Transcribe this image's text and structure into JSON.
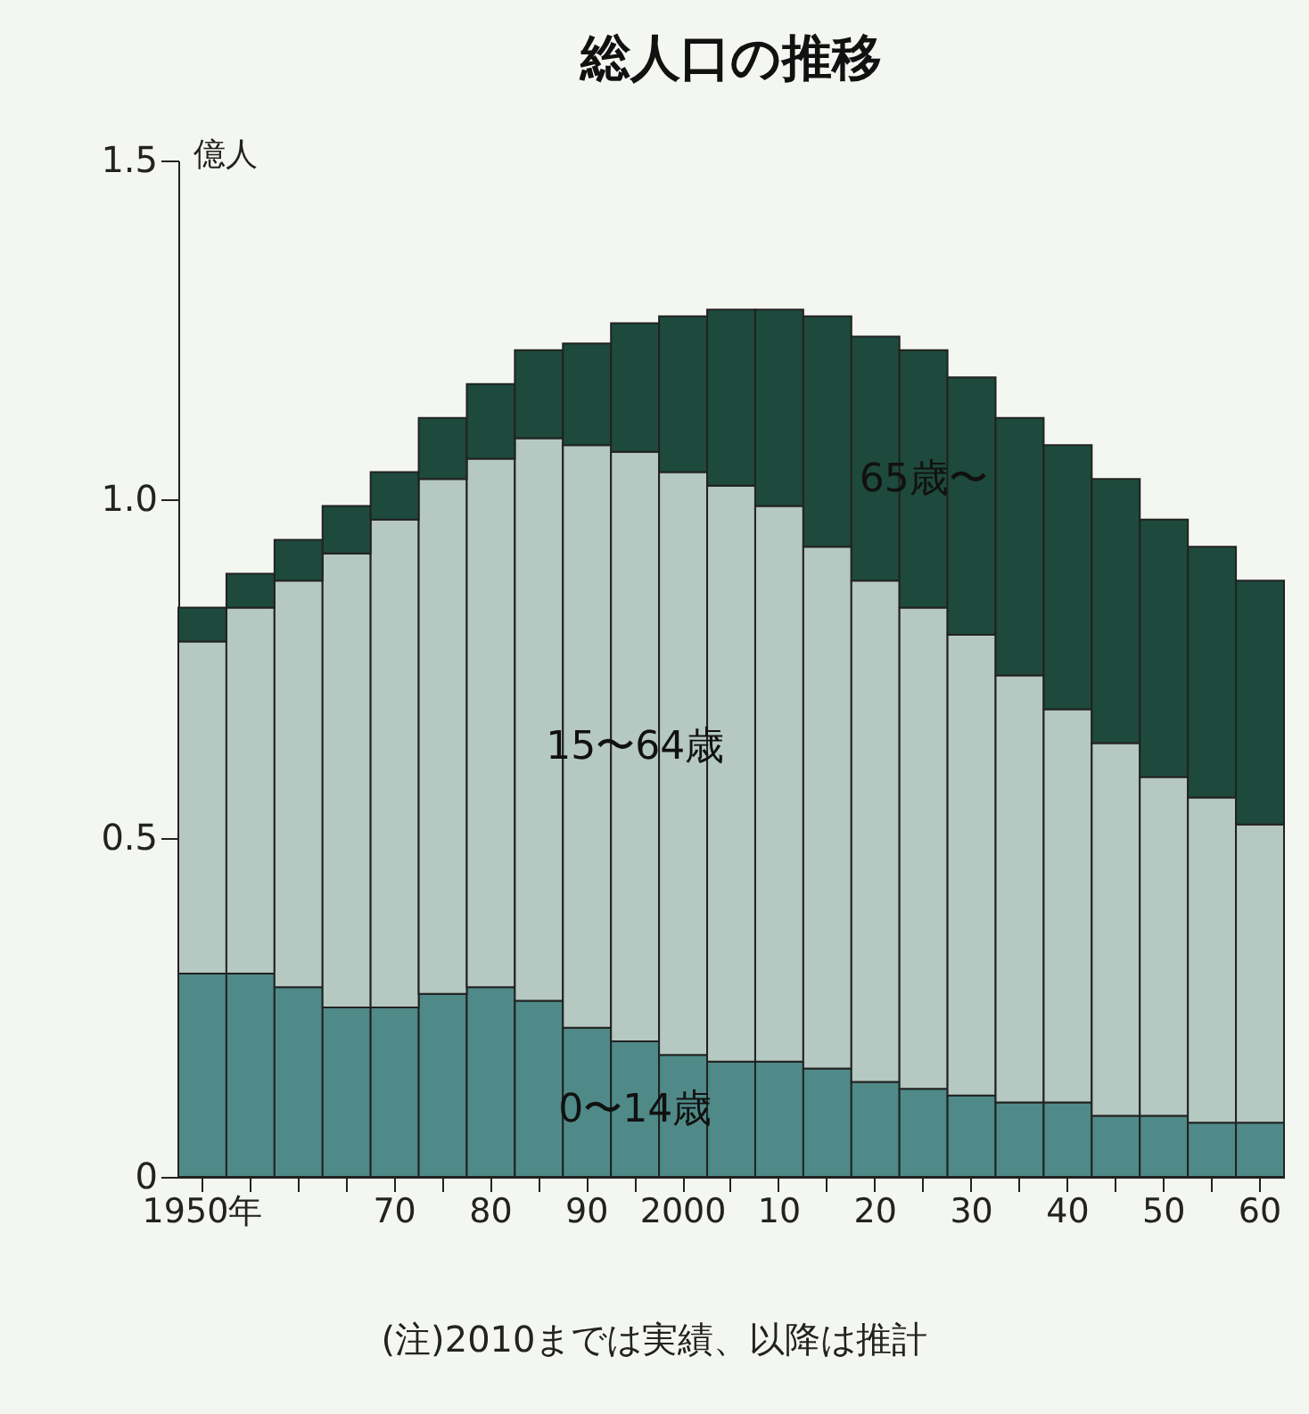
{
  "chart_data": {
    "type": "bar",
    "stacked": true,
    "title": "総人口の推移",
    "ylabel": "億人",
    "xlabel": null,
    "categories": [
      "1950年",
      null,
      null,
      null,
      "70",
      null,
      "80",
      null,
      "90",
      null,
      "2000",
      null,
      "10",
      null,
      "20",
      null,
      "30",
      null,
      "40",
      null,
      "50",
      null,
      "60"
    ],
    "series": [
      {
        "name": "0〜14歳",
        "color": "#4f8a88",
        "values": [
          0.3,
          0.3,
          0.28,
          0.25,
          0.25,
          0.27,
          0.28,
          0.26,
          0.22,
          0.2,
          0.18,
          0.17,
          0.17,
          0.16,
          0.14,
          0.13,
          0.12,
          0.11,
          0.11,
          0.09,
          0.09,
          0.08,
          0.08
        ]
      },
      {
        "name": "15〜64歳",
        "color": "#b5c8c1",
        "values": [
          0.49,
          0.54,
          0.6,
          0.67,
          0.72,
          0.76,
          0.78,
          0.83,
          0.86,
          0.87,
          0.86,
          0.85,
          0.82,
          0.77,
          0.74,
          0.71,
          0.68,
          0.63,
          0.58,
          0.55,
          0.5,
          0.48,
          0.44
        ]
      },
      {
        "name": "65歳〜",
        "color": "#1d4a3c",
        "values": [
          0.05,
          0.05,
          0.06,
          0.07,
          0.07,
          0.09,
          0.11,
          0.13,
          0.15,
          0.19,
          0.23,
          0.26,
          0.29,
          0.34,
          0.36,
          0.38,
          0.38,
          0.38,
          0.39,
          0.39,
          0.38,
          0.37,
          0.36
        ]
      }
    ],
    "ylim": [
      0,
      1.5
    ],
    "yticks": [
      0,
      {
        "value": 0.5,
        "label": "0.5"
      },
      {
        "value": 1,
        "label": "1.0"
      },
      {
        "value": 1.5,
        "label": "1.5"
      }
    ],
    "annotations": [
      "(注)2010までは実績、以降は推計"
    ]
  }
}
